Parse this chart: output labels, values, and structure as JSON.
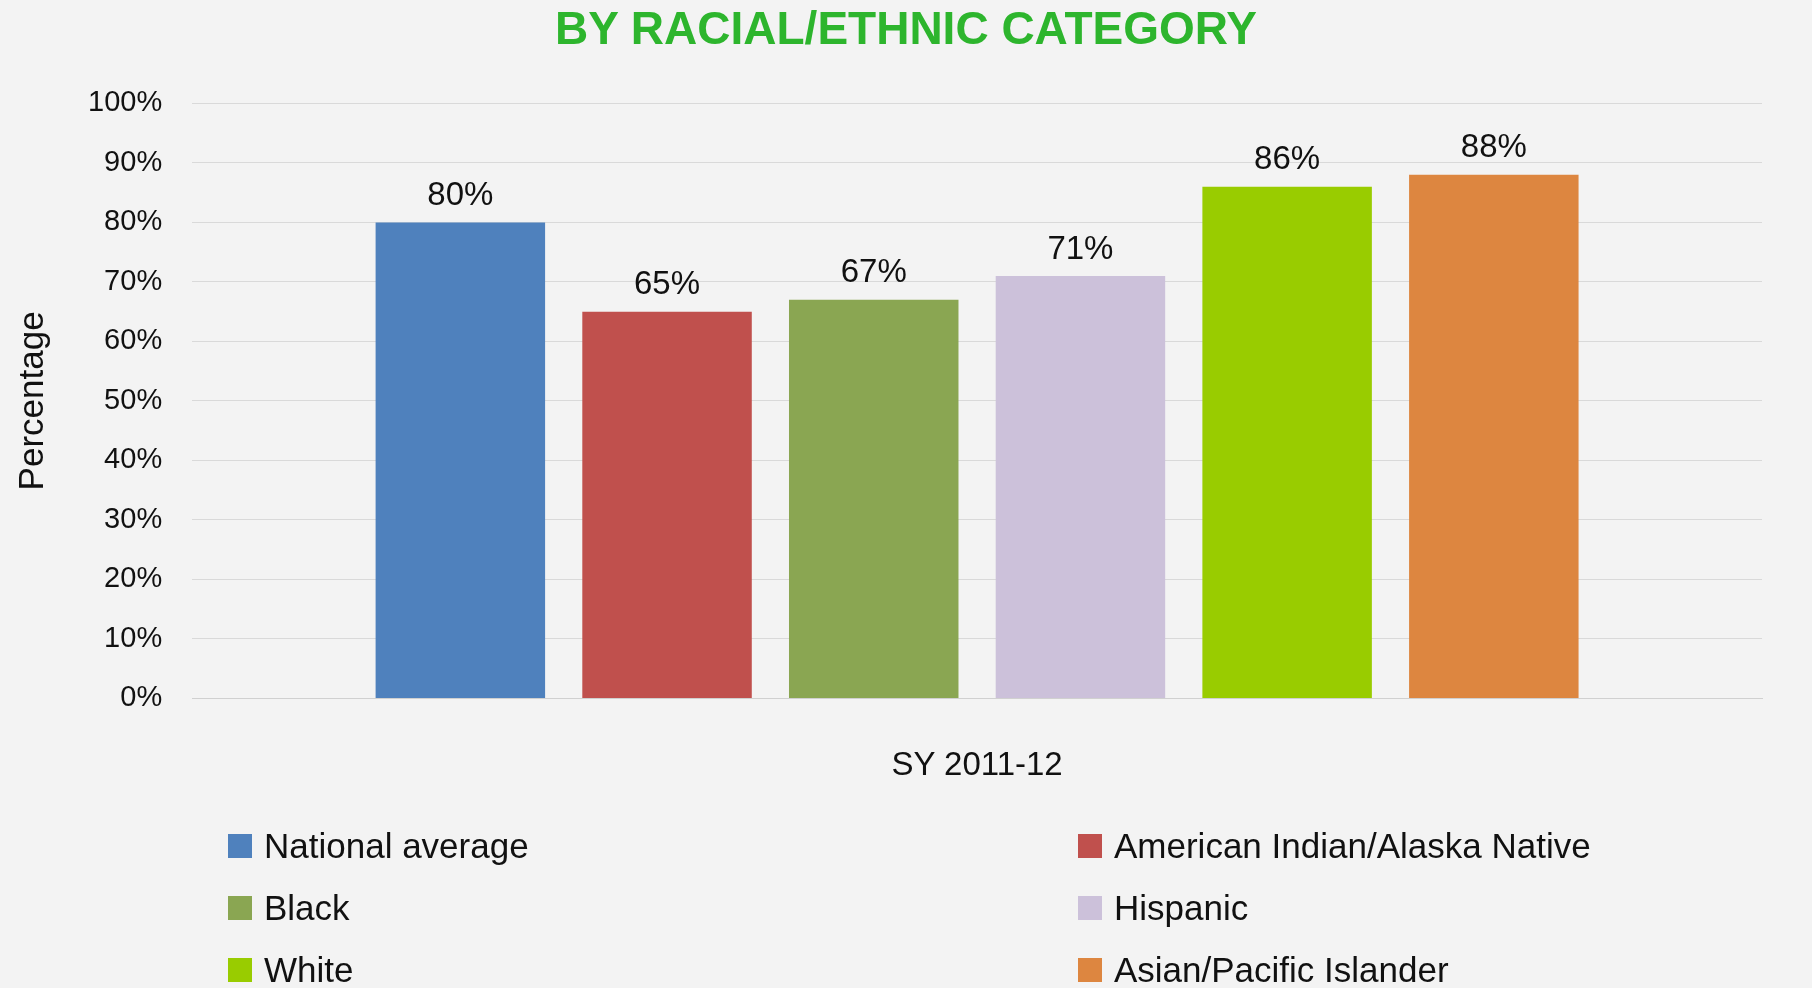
{
  "chart_data": {
    "type": "bar",
    "title": "BY RACIAL/ETHNIC CATEGORY",
    "ylabel": "Percentage",
    "categories": [
      "SY 2011-12"
    ],
    "series": [
      {
        "name": "National average",
        "color": "#4f81bd",
        "values": [
          80
        ],
        "value_labels": [
          "80%"
        ]
      },
      {
        "name": "American Indian/Alaska Native",
        "color": "#c0504d",
        "values": [
          65
        ],
        "value_labels": [
          "65%"
        ]
      },
      {
        "name": "Black",
        "color": "#8aa652",
        "values": [
          67
        ],
        "value_labels": [
          "67%"
        ]
      },
      {
        "name": "Hispanic",
        "color": "#ccc1da",
        "values": [
          71
        ],
        "value_labels": [
          "71%"
        ]
      },
      {
        "name": "White",
        "color": "#99cc00",
        "values": [
          86
        ],
        "value_labels": [
          "86%"
        ]
      },
      {
        "name": "Asian/Pacific Islander",
        "color": "#dd8640",
        "values": [
          88
        ],
        "value_labels": [
          "88%"
        ]
      }
    ],
    "ylim": [
      0,
      100
    ],
    "yticks": [
      {
        "value": 0,
        "label": "0%"
      },
      {
        "value": 10,
        "label": "10%"
      },
      {
        "value": 20,
        "label": "20%"
      },
      {
        "value": 30,
        "label": "30%"
      },
      {
        "value": 40,
        "label": "40%"
      },
      {
        "value": 50,
        "label": "50%"
      },
      {
        "value": 60,
        "label": "60%"
      },
      {
        "value": 70,
        "label": "70%"
      },
      {
        "value": 80,
        "label": "80%"
      },
      {
        "value": 90,
        "label": "90%"
      },
      {
        "value": 100,
        "label": "100%"
      }
    ],
    "grid": "y",
    "legend": "bottom"
  }
}
